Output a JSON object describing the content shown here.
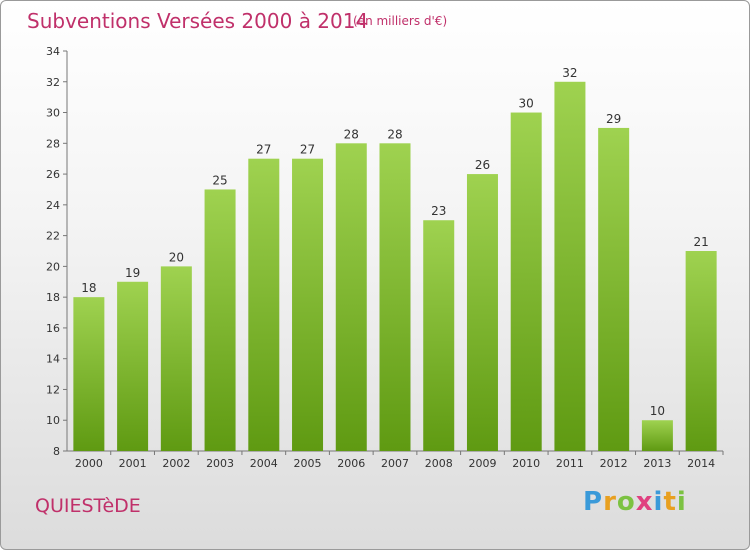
{
  "title": "Subventions Versées 2000 à 2014",
  "subtitle": "(en milliers d'€)",
  "commune": "QUIESTèDE",
  "logo": {
    "letters": [
      "P",
      "r",
      "o",
      "x",
      "i",
      "t",
      "i"
    ],
    "colors": [
      "#3a9ad9",
      "#e8a020",
      "#7cc242",
      "#e04080",
      "#3a9ad9",
      "#e8a020",
      "#7cc242"
    ]
  },
  "colors": {
    "bar_light": "#9fd250",
    "bar_dark": "#5f9a12",
    "title": "#c0306a"
  },
  "chart_data": {
    "type": "bar",
    "categories": [
      "2000",
      "2001",
      "2002",
      "2003",
      "2004",
      "2005",
      "2006",
      "2007",
      "2008",
      "2009",
      "2010",
      "2011",
      "2012",
      "2013",
      "2014"
    ],
    "values": [
      18,
      19,
      20,
      25,
      27,
      27,
      28,
      28,
      23,
      26,
      30,
      32,
      29,
      10,
      21
    ],
    "data_labels": [
      "18",
      "19",
      "20",
      "25",
      "27",
      "27",
      "28",
      "28",
      "23",
      "26",
      "30",
      "32",
      "29",
      "10",
      "21"
    ],
    "ylim": [
      8,
      34
    ],
    "yticks": [
      8,
      10,
      12,
      14,
      16,
      18,
      20,
      22,
      24,
      26,
      28,
      30,
      32,
      34
    ],
    "grid": false
  }
}
